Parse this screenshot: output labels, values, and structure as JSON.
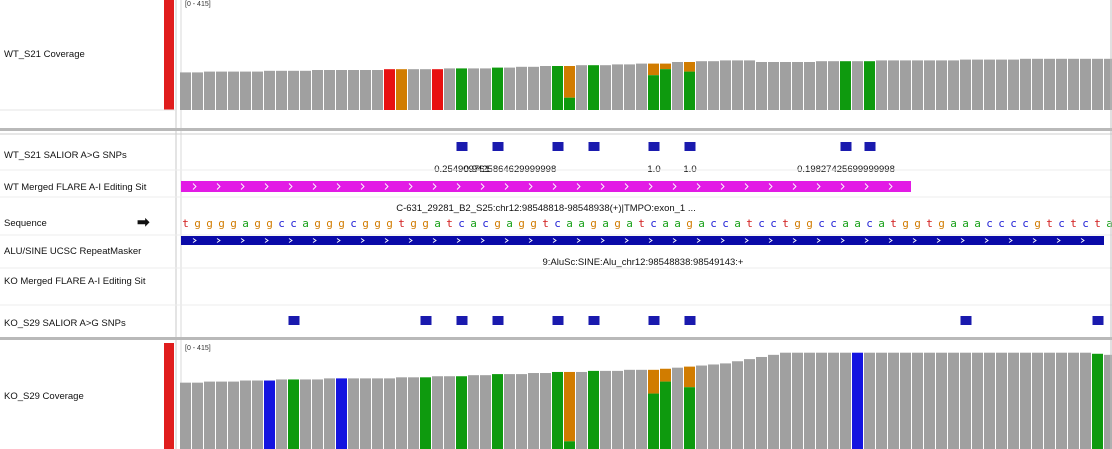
{
  "tracks": {
    "wt_coverage": {
      "name": "WT_S21 Coverage",
      "range": "[0 - 415]"
    },
    "wt_snps": {
      "name": "WT_S21 SALIOR A>G SNPs"
    },
    "wt_flare": {
      "name": "WT Merged FLARE A-I Editing Sit"
    },
    "sequence": {
      "name": "Sequence",
      "arrow": "➡"
    },
    "repeatmasker": {
      "name": "ALU/SINE UCSC RepeatMasker"
    },
    "ko_flare": {
      "name": "KO Merged FLARE A-I Editing Sit"
    },
    "ko_snps": {
      "name": "KO_S29 SALIOR A>G SNPs"
    },
    "ko_coverage": {
      "name": "KO_S29 Coverage",
      "range": "[0 - 415]"
    }
  },
  "colors": {
    "coverage_gray": "#a0a0a0",
    "snp_blue": "#1a1aae",
    "flare_magenta": "#e21be5",
    "repeat_navy": "#0a0aa8",
    "A": "#17a017",
    "C": "#2323d6",
    "G": "#d17c00",
    "T": "#d11a1a",
    "alt_red": "#e81010",
    "alt_orange": "#d17c00",
    "alt_green": "#0e9a0e",
    "alt_blue": "#1414e0",
    "track_marker": "#e01d1d"
  },
  "sequence": "tggggaggccagggcgggtggatcacgaggtcaagagatcaagaccatcctggccaacatggtgaaaccccgtctcta",
  "wt_snp_values": [
    "0.254909761",
    "0.9425864629999998",
    "1.0",
    "1.0",
    "0.19827425699999998"
  ],
  "wt_flare_feature": "C-631_29281_B2_S25:chr12:98548818-98548938(+)|TMPO:exon_1 ...",
  "repeat_feature": "9:AluSc:SINE:Alu_chr12:98548838:98549143:+",
  "wt_coverage_heights": [
    0.47,
    0.47,
    0.48,
    0.48,
    0.48,
    0.48,
    0.48,
    0.49,
    0.49,
    0.49,
    0.49,
    0.5,
    0.5,
    0.5,
    0.5,
    0.5,
    0.5,
    0.51,
    0.51,
    0.51,
    0.51,
    0.51,
    0.52,
    0.52,
    0.52,
    0.52,
    0.53,
    0.53,
    0.54,
    0.54,
    0.55,
    0.55,
    0.55,
    0.56,
    0.56,
    0.56,
    0.57,
    0.57,
    0.58,
    0.58,
    0.58,
    0.6,
    0.6,
    0.61,
    0.61,
    0.62,
    0.62,
    0.62,
    0.6,
    0.6,
    0.6,
    0.6,
    0.6,
    0.61,
    0.61,
    0.61,
    0.61,
    0.61,
    0.62,
    0.62,
    0.62,
    0.62,
    0.62,
    0.62,
    0.62,
    0.63,
    0.63,
    0.63,
    0.63,
    0.63,
    0.64,
    0.64,
    0.64,
    0.64,
    0.64,
    0.64,
    0.64,
    0.64,
    0.65,
    0.65,
    0.65,
    0.65,
    0.65,
    0.65,
    0.65,
    0.66,
    0.66,
    0.66,
    0.66,
    0.66,
    0.66,
    0.66,
    0.67,
    0.67,
    0.67,
    0.67,
    0.67,
    0.67,
    0.67,
    0.68,
    0.68,
    0.68,
    0.68,
    0.68,
    0.68,
    0.68,
    0.68,
    0.68,
    0.68,
    0.68,
    0.68,
    0.68
  ],
  "ko_coverage_heights": [
    0.62,
    0.62,
    0.63,
    0.63,
    0.63,
    0.64,
    0.64,
    0.64,
    0.65,
    0.65,
    0.65,
    0.65,
    0.66,
    0.66,
    0.66,
    0.66,
    0.66,
    0.66,
    0.67,
    0.67,
    0.67,
    0.68,
    0.68,
    0.68,
    0.69,
    0.69,
    0.7,
    0.7,
    0.7,
    0.71,
    0.71,
    0.72,
    0.72,
    0.72,
    0.73,
    0.73,
    0.73,
    0.74,
    0.74,
    0.74,
    0.75,
    0.76,
    0.77,
    0.78,
    0.79,
    0.8,
    0.82,
    0.84,
    0.86,
    0.88,
    0.9,
    0.9,
    0.9,
    0.9,
    0.9,
    0.9,
    0.9,
    0.9,
    0.9,
    0.9,
    0.9,
    0.9,
    0.9,
    0.9,
    0.9,
    0.9,
    0.9,
    0.9,
    0.9,
    0.9,
    0.9,
    0.9,
    0.9,
    0.9,
    0.9,
    0.9,
    0.89,
    0.88,
    0.87,
    0.87,
    0.86,
    0.86,
    0.85,
    0.85,
    0.84,
    0.84,
    0.84,
    0.84,
    0.84,
    0.84,
    0.84,
    0.84,
    0.84,
    0.84,
    0.84,
    0.84,
    0.84,
    0.84,
    0.84,
    0.85,
    0.85,
    0.85,
    0.86,
    0.86,
    0.87,
    0.87,
    0.88,
    0.89,
    0.9,
    0.9,
    0.9,
    0.9
  ]
}
